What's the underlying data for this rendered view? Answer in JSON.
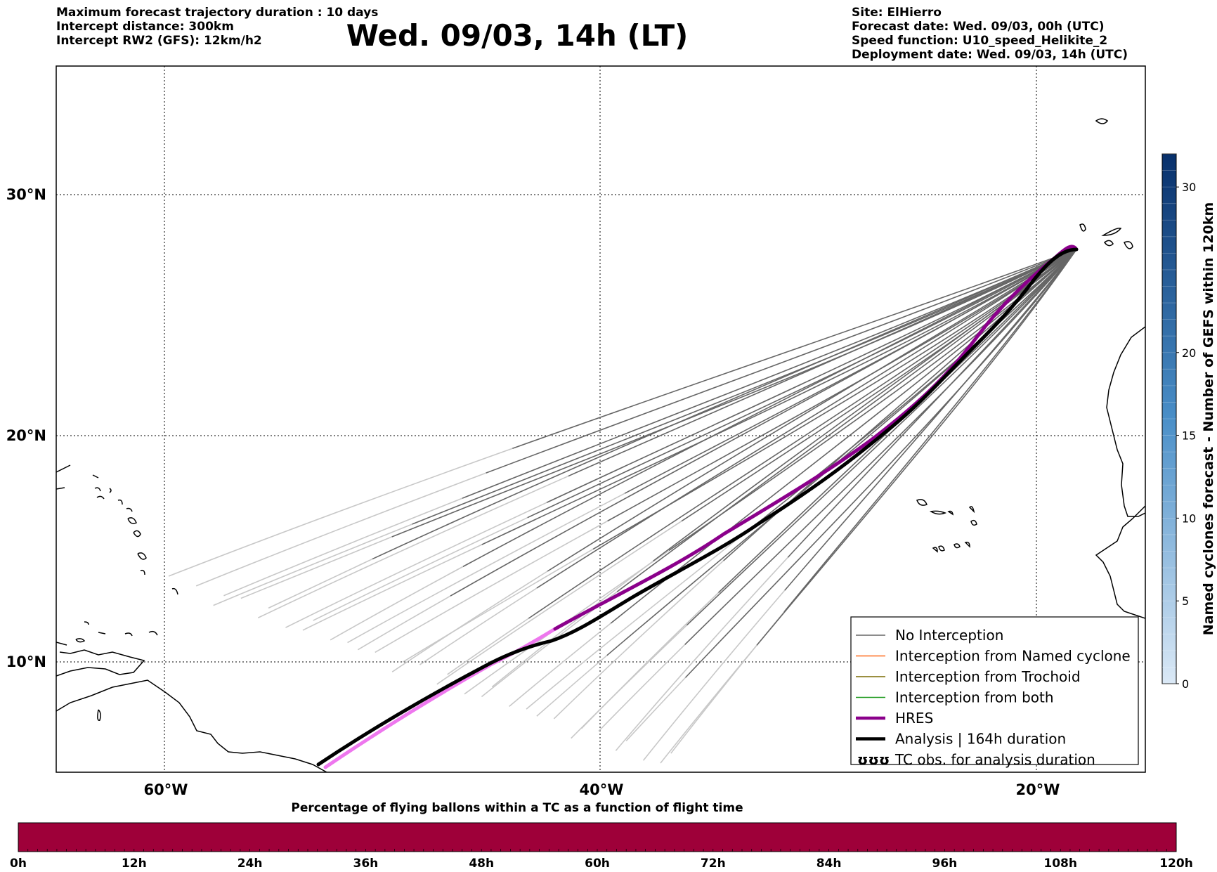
{
  "header": {
    "left": [
      "Maximum forecast trajectory duration : 10 days",
      "Intercept distance: 300km",
      "Intercept RW2 (GFS):  12km/h2"
    ],
    "title": "Wed. 09/03, 14h (LT)",
    "right": [
      "Site: ElHierro",
      "Forecast date: Wed. 09/03, 00h (UTC)",
      "Speed function: U10_speed_Helikite_2",
      "Deployment date: Wed. 09/03, 14h (UTC)"
    ]
  },
  "map": {
    "lon_range": [
      -65,
      15
    ],
    "lat_range": [
      5,
      35
    ],
    "lon_ticks": [
      {
        "value": -60,
        "label": "60°W"
      },
      {
        "value": -40,
        "label": "40°W"
      },
      {
        "value": -20,
        "label": "20°W"
      }
    ],
    "lat_ticks": [
      {
        "value": 30,
        "label": "30°N"
      },
      {
        "value": 20,
        "label": "20°N"
      },
      {
        "value": 10,
        "label": "10°N"
      }
    ],
    "colors": {
      "no_interception": "#666666",
      "no_interception_light": "#c8c8c8",
      "named_cyclone": "#ff6a1a",
      "trochoid": "#7a6a00",
      "both": "#1f9a1f",
      "hres": "#8b008b",
      "hres_early": "#ee77ee",
      "analysis": "#000000"
    },
    "site": {
      "lon": -17.9,
      "lat": 27.7
    }
  },
  "legend": {
    "items": [
      {
        "key": "no_interception",
        "label": "No Interception"
      },
      {
        "key": "named_cyclone",
        "label": "Interception from Named cyclone"
      },
      {
        "key": "trochoid",
        "label": "Interception from Trochoid"
      },
      {
        "key": "both",
        "label": "Interception from both"
      },
      {
        "key": "hres",
        "label": "HRES"
      },
      {
        "key": "analysis",
        "label": "Analysis | 164h duration"
      },
      {
        "key": "tc_obs",
        "label": "TC obs. for analysis duration"
      }
    ],
    "tc_symbol": "ʊʊʊ"
  },
  "right_colorbar": {
    "label": "Named cyclones forecast - Number of GEFS within 120km",
    "min": 0,
    "max": 32,
    "ticks": [
      "0",
      "5",
      "10",
      "15",
      "20",
      "30"
    ],
    "color_low": "#dbe9f6",
    "color_high": "#08306b"
  },
  "bottom_colorbar": {
    "title": "Percentage of flying ballons within a TC as a function of flight time",
    "ticks": [
      "0h",
      "12h",
      "24h",
      "36h",
      "48h",
      "60h",
      "72h",
      "84h",
      "96h",
      "108h",
      "120h"
    ],
    "fill_color": "#9e0039",
    "value_percent": 0
  }
}
